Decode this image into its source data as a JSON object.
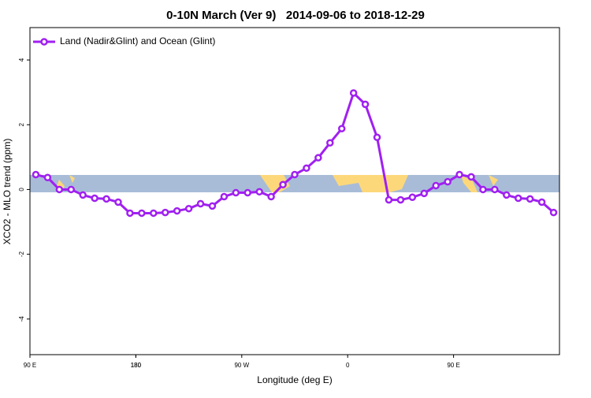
{
  "chart_data": {
    "type": "line",
    "title": "0-10N March (Ver 9)   2014-09-06 to 2018-12-29",
    "x_label": "Longitude (deg E)",
    "y_label": "XCO2 - MLO trend (ppm)",
    "x": [
      95,
      105,
      115,
      125,
      135,
      145,
      155,
      165,
      175,
      185,
      195,
      205,
      215,
      225,
      235,
      245,
      255,
      265,
      275,
      285,
      295,
      305,
      315,
      325,
      335,
      345,
      355,
      365,
      375,
      385,
      395,
      405,
      415,
      425,
      435,
      445,
      455,
      465,
      475,
      485,
      495,
      505,
      515,
      525,
      535
    ],
    "series": [
      {
        "name": "Land (Nadir&Glint) and Ocean (Glint)",
        "color": "#a020f0",
        "values": [
          0.46,
          0.37,
          0.0,
          0.0,
          -0.17,
          -0.27,
          -0.29,
          -0.39,
          -0.73,
          -0.73,
          -0.73,
          -0.71,
          -0.66,
          -0.59,
          -0.44,
          -0.51,
          -0.22,
          -0.1,
          -0.1,
          -0.07,
          -0.22,
          0.15,
          0.46,
          0.66,
          0.98,
          1.44,
          1.88,
          2.98,
          2.63,
          1.61,
          -0.32,
          -0.32,
          -0.24,
          -0.12,
          0.12,
          0.24,
          0.46,
          0.39,
          0.0,
          0.0,
          -0.17,
          -0.27,
          -0.29,
          -0.39,
          -0.71
        ]
      }
    ],
    "xlim": [
      90,
      540
    ],
    "ylim": [
      -5.1,
      5.0
    ],
    "xticks": [
      {
        "value": 90,
        "label": "90 E"
      },
      180,
      {
        "value": 270,
        "label": "90 W"
      },
      {
        "value": 360,
        "label": "0"
      },
      {
        "value": 450,
        "label": "90 E"
      },
      180.0001
    ],
    "yticks": [
      -4,
      -2,
      0,
      2,
      4
    ],
    "legend": "top-left"
  }
}
